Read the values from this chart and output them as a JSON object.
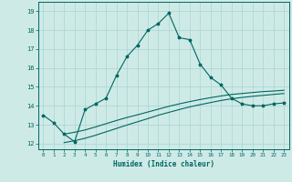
{
  "title": "",
  "xlabel": "Humidex (Indice chaleur)",
  "background_color": "#ceeae7",
  "grid_color": "#b0d8d4",
  "line_color": "#006660",
  "xlim": [
    -0.5,
    23.5
  ],
  "ylim": [
    11.7,
    19.5
  ],
  "xticks": [
    0,
    1,
    2,
    3,
    4,
    5,
    6,
    7,
    8,
    9,
    10,
    11,
    12,
    13,
    14,
    15,
    16,
    17,
    18,
    19,
    20,
    21,
    22,
    23
  ],
  "yticks": [
    12,
    13,
    14,
    15,
    16,
    17,
    18,
    19
  ],
  "curve1_x": [
    0,
    1,
    2,
    3,
    4,
    5,
    6,
    7,
    8,
    9,
    10,
    11,
    12,
    13,
    14,
    15,
    16,
    17,
    18,
    19,
    20,
    21,
    22,
    23
  ],
  "curve1_y": [
    13.5,
    13.1,
    12.5,
    12.1,
    13.8,
    14.1,
    14.4,
    15.6,
    16.6,
    17.2,
    18.0,
    18.35,
    18.9,
    17.6,
    17.5,
    16.2,
    15.5,
    15.1,
    14.4,
    14.1,
    14.0,
    14.0,
    14.1,
    14.15
  ],
  "curve2_x": [
    2,
    3,
    4,
    5,
    6,
    7,
    8,
    9,
    10,
    11,
    12,
    13,
    14,
    15,
    16,
    17,
    18,
    19,
    20,
    21,
    22,
    23
  ],
  "curve2_y": [
    12.5,
    12.6,
    12.72,
    12.88,
    13.05,
    13.22,
    13.38,
    13.52,
    13.67,
    13.82,
    13.97,
    14.1,
    14.22,
    14.33,
    14.43,
    14.52,
    14.6,
    14.65,
    14.7,
    14.75,
    14.78,
    14.82
  ],
  "curve3_x": [
    2,
    3,
    4,
    5,
    6,
    7,
    8,
    9,
    10,
    11,
    12,
    13,
    14,
    15,
    16,
    17,
    18,
    19,
    20,
    21,
    22,
    23
  ],
  "curve3_y": [
    12.05,
    12.15,
    12.28,
    12.44,
    12.62,
    12.8,
    12.98,
    13.15,
    13.32,
    13.5,
    13.65,
    13.8,
    13.94,
    14.06,
    14.17,
    14.28,
    14.37,
    14.44,
    14.5,
    14.55,
    14.6,
    14.65
  ]
}
